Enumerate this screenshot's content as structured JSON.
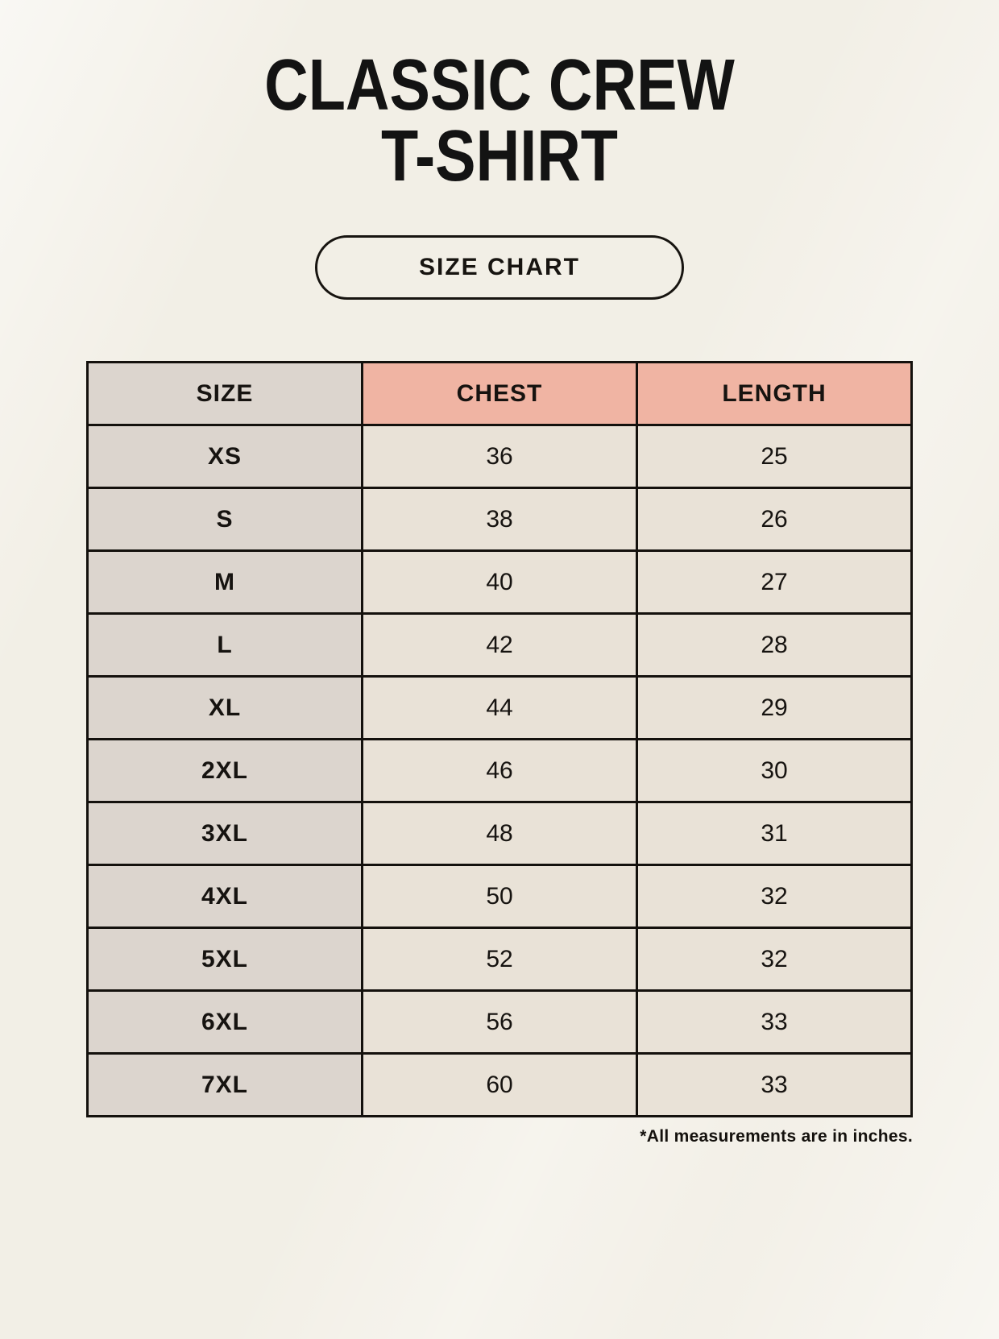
{
  "page": {
    "title_line1": "CLASSIC CREW",
    "title_line2": "T-SHIRT",
    "badge_label": "SIZE CHART",
    "footnote": "*All measurements are in inches."
  },
  "colors": {
    "background": "#f2efe6",
    "size_column_bg": "#dcd5ce",
    "header_accent_bg": "#f0b4a3",
    "value_cell_bg": "#e9e2d7",
    "border": "#14110d",
    "text": "#131313"
  },
  "table": {
    "columns": [
      "SIZE",
      "CHEST",
      "LENGTH"
    ],
    "rows": [
      {
        "size": "XS",
        "chest": "36",
        "length": "25"
      },
      {
        "size": "S",
        "chest": "38",
        "length": "26"
      },
      {
        "size": "M",
        "chest": "40",
        "length": "27"
      },
      {
        "size": "L",
        "chest": "42",
        "length": "28"
      },
      {
        "size": "XL",
        "chest": "44",
        "length": "29"
      },
      {
        "size": "2XL",
        "chest": "46",
        "length": "30"
      },
      {
        "size": "3XL",
        "chest": "48",
        "length": "31"
      },
      {
        "size": "4XL",
        "chest": "50",
        "length": "32"
      },
      {
        "size": "5XL",
        "chest": "52",
        "length": "32"
      },
      {
        "size": "6XL",
        "chest": "56",
        "length": "33"
      },
      {
        "size": "7XL",
        "chest": "60",
        "length": "33"
      }
    ]
  }
}
